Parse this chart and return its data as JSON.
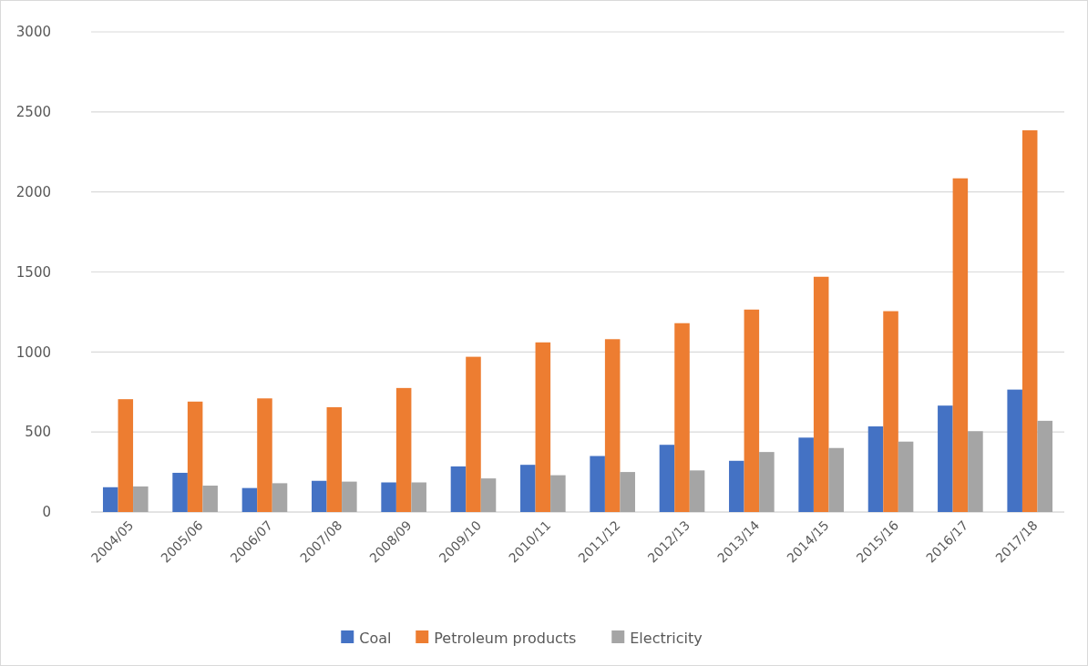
{
  "chart_data": {
    "type": "bar",
    "categories": [
      "2004/05",
      "2005/06",
      "2006/07",
      "2007/08",
      "2008/09",
      "2009/10",
      "2010/11",
      "2011/12",
      "2012/13",
      "2013/14",
      "2014/15",
      "2015/16",
      "2016/17",
      "2017/18"
    ],
    "series": [
      {
        "name": "Coal",
        "color": "#4472c4",
        "values": [
          155,
          245,
          150,
          195,
          185,
          285,
          295,
          350,
          420,
          320,
          465,
          535,
          665,
          765
        ]
      },
      {
        "name": "Petroleum products",
        "color": "#ed7d31",
        "values": [
          705,
          690,
          710,
          655,
          775,
          970,
          1060,
          1080,
          1180,
          1265,
          1470,
          1255,
          2085,
          2385
        ]
      },
      {
        "name": "Electricity",
        "color": "#a5a5a5",
        "values": [
          160,
          165,
          180,
          190,
          185,
          210,
          230,
          250,
          260,
          375,
          400,
          440,
          505,
          570
        ]
      }
    ],
    "ylim": [
      0,
      3000
    ],
    "yticks": [
      0,
      500,
      1000,
      1500,
      2000,
      2500,
      3000
    ],
    "grid": "y",
    "legend": "bottom"
  }
}
